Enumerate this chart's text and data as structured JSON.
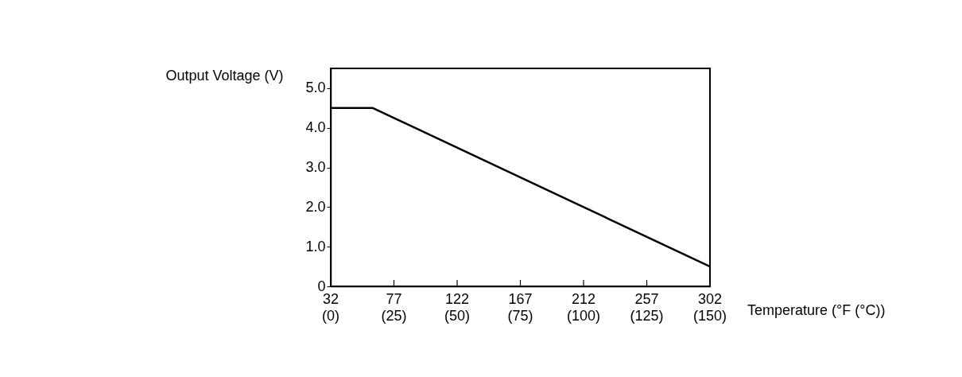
{
  "chart_data": {
    "type": "line",
    "xlabel": "Temperature (°F (°C))",
    "ylabel": "Output Voltage (V)",
    "x": [
      32,
      62,
      302
    ],
    "series": [
      {
        "color": "#000000",
        "values": [
          4.5,
          4.5,
          0.5
        ]
      }
    ],
    "xlim": [
      32,
      302
    ],
    "xticks": [
      32,
      77,
      122,
      167,
      212,
      257,
      302
    ],
    "x2lim": [
      0,
      150
    ],
    "x2ticks": [
      {
        "value": 0,
        "label": "(0)"
      },
      {
        "value": 25,
        "label": "(25)"
      },
      {
        "value": 50,
        "label": "(50)"
      },
      {
        "value": 75,
        "label": "(75)"
      },
      {
        "value": 100,
        "label": "(100)"
      },
      {
        "value": 125,
        "label": "(125)"
      },
      {
        "value": 150,
        "label": "(150)"
      }
    ],
    "ylim": [
      0,
      5.5
    ],
    "yticks": [
      {
        "value": 0,
        "label": "0"
      },
      {
        "value": 1,
        "label": "1.0"
      },
      {
        "value": 2,
        "label": "2.0"
      },
      {
        "value": 3,
        "label": "3.0"
      },
      {
        "value": 4,
        "label": "4.0"
      },
      {
        "value": 5,
        "label": "5.0"
      }
    ],
    "grid": false,
    "legend": false,
    "marker": "none",
    "line_style": "solid"
  }
}
